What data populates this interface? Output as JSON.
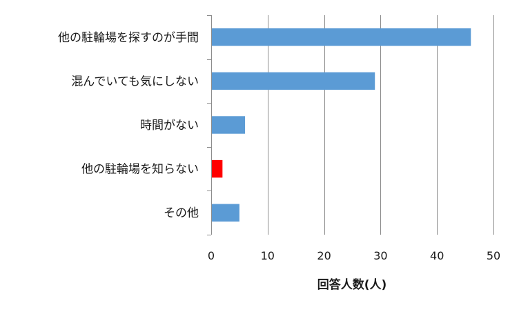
{
  "chart_data": {
    "type": "bar",
    "orientation": "horizontal",
    "categories": [
      "他の駐輪場を探すのが手間",
      "混んでいても気にしない",
      "時間がない",
      "他の駐輪場を知らない",
      "その他"
    ],
    "values": [
      46,
      29,
      6,
      2,
      5
    ],
    "bar_colors": [
      "#5b9bd5",
      "#5b9bd5",
      "#5b9bd5",
      "#ff0000",
      "#5b9bd5"
    ],
    "xlabel": "回答人数(人)",
    "xlim": [
      0,
      50
    ],
    "xticks": [
      "0",
      "10",
      "20",
      "30",
      "40",
      "50"
    ],
    "grid": "vertical",
    "legend": "none"
  }
}
